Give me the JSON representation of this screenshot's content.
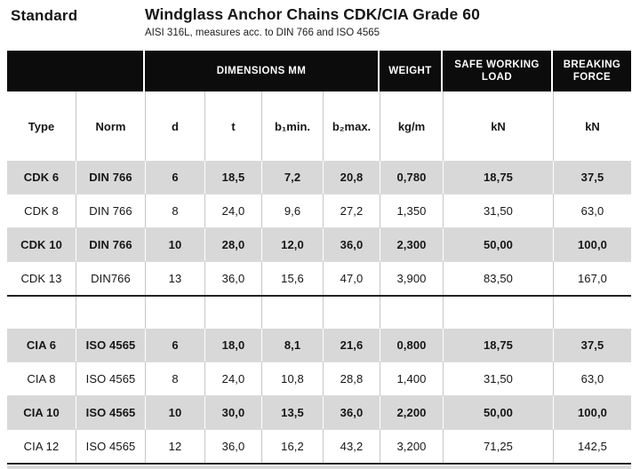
{
  "header": {
    "standard_label": "Standard",
    "title": "Windglass Anchor Chains CDK/CIA Grade 60",
    "subtitle": "AISI 316L, measures acc. to DIN 766 and ISO 4565"
  },
  "table": {
    "band": {
      "dimensions": "DIMENSIONS MM",
      "weight": "WEIGHT",
      "safe_working_load": "SAFE WORKING LOAD",
      "breaking_force": "BREAKING FORCE"
    },
    "columns": [
      "Type",
      "Norm",
      "d",
      "t",
      "b₁min.",
      "b₂max.",
      "kg/m",
      "kN",
      "kN"
    ],
    "cdk_rows": [
      {
        "type": "CDK 6",
        "norm": "DIN 766",
        "d": "6",
        "t": "18,5",
        "b1": "7,2",
        "b2": "20,8",
        "kgm": "0,780",
        "swl": "18,75",
        "bf": "37,5",
        "highlight": true
      },
      {
        "type": "CDK 8",
        "norm": "DIN 766",
        "d": "8",
        "t": "24,0",
        "b1": "9,6",
        "b2": "27,2",
        "kgm": "1,350",
        "swl": "31,50",
        "bf": "63,0",
        "highlight": false
      },
      {
        "type": "CDK 10",
        "norm": "DIN 766",
        "d": "10",
        "t": "28,0",
        "b1": "12,0",
        "b2": "36,0",
        "kgm": "2,300",
        "swl": "50,00",
        "bf": "100,0",
        "highlight": true
      },
      {
        "type": "CDK 13",
        "norm": "DIN766",
        "d": "13",
        "t": "36,0",
        "b1": "15,6",
        "b2": "47,0",
        "kgm": "3,900",
        "swl": "83,50",
        "bf": "167,0",
        "highlight": false
      }
    ],
    "cia_rows": [
      {
        "type": "CIA 6",
        "norm": "ISO 4565",
        "d": "6",
        "t": "18,0",
        "b1": "8,1",
        "b2": "21,6",
        "kgm": "0,800",
        "swl": "18,75",
        "bf": "37,5",
        "highlight": true
      },
      {
        "type": "CIA 8",
        "norm": "ISO 4565",
        "d": "8",
        "t": "24,0",
        "b1": "10,8",
        "b2": "28,8",
        "kgm": "1,400",
        "swl": "31,50",
        "bf": "63,0",
        "highlight": false
      },
      {
        "type": "CIA 10",
        "norm": "ISO 4565",
        "d": "10",
        "t": "30,0",
        "b1": "13,5",
        "b2": "36,0",
        "kgm": "2,200",
        "swl": "50,00",
        "bf": "100,0",
        "highlight": true
      },
      {
        "type": "CIA 12",
        "norm": "ISO 4565",
        "d": "12",
        "t": "36,0",
        "b1": "16,2",
        "b2": "43,2",
        "kgm": "3,200",
        "swl": "71,25",
        "bf": "142,5",
        "highlight": false
      }
    ]
  },
  "colors": {
    "band_bg": "#0c0c0c",
    "row_highlight": "#d8d8d8"
  }
}
